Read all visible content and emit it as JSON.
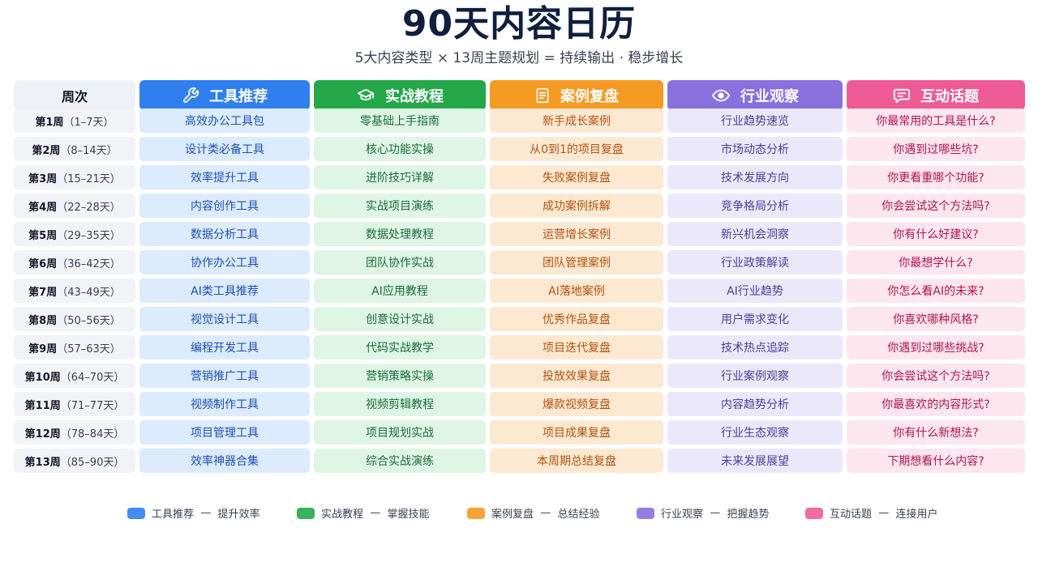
{
  "title": "90天内容日历",
  "subtitle": "5大内容类型  ×  13周主题规划  =  持续输出  ·  稳步增长",
  "headers": {
    "week": "周次",
    "categories": [
      {
        "label": "工具推荐",
        "icon": "wrench-icon",
        "color": "#2f7ff0"
      },
      {
        "label": "实战教程",
        "icon": "graduation-cap-icon",
        "color": "#24a84a"
      },
      {
        "label": "案例复盘",
        "icon": "document-icon",
        "color": "#f59a22"
      },
      {
        "label": "行业观察",
        "icon": "eye-icon",
        "color": "#8870dd"
      },
      {
        "label": "互动话题",
        "icon": "chat-bubble-icon",
        "color": "#ee5b95"
      }
    ]
  },
  "rows": [
    {
      "week": "第1周",
      "range": "（1–7天）",
      "cells": [
        "高效办公工具包",
        "零基础上手指南",
        "新手成长案例",
        "行业趋势速览",
        "你最常用的工具是什么?"
      ]
    },
    {
      "week": "第2周",
      "range": "（8–14天）",
      "cells": [
        "设计类必备工具",
        "核心功能实操",
        "从0到1的项目复盘",
        "市场动态分析",
        "你遇到过哪些坑?"
      ]
    },
    {
      "week": "第3周",
      "range": "（15–21天）",
      "cells": [
        "效率提升工具",
        "进阶技巧详解",
        "失败案例复盘",
        "技术发展方向",
        "你更看重哪个功能?"
      ]
    },
    {
      "week": "第4周",
      "range": "（22–28天）",
      "cells": [
        "内容创作工具",
        "实战项目演练",
        "成功案例拆解",
        "竞争格局分析",
        "你会尝试这个方法吗?"
      ]
    },
    {
      "week": "第5周",
      "range": "（29–35天）",
      "cells": [
        "数据分析工具",
        "数据处理教程",
        "运营增长案例",
        "新兴机会洞察",
        "你有什么好建议?"
      ]
    },
    {
      "week": "第6周",
      "range": "（36–42天）",
      "cells": [
        "协作办公工具",
        "团队协作实战",
        "团队管理案例",
        "行业政策解读",
        "你最想学什么?"
      ]
    },
    {
      "week": "第7周",
      "range": "（43–49天）",
      "cells": [
        "AI类工具推荐",
        "AI应用教程",
        "AI落地案例",
        "AI行业趋势",
        "你怎么看AI的未来?"
      ]
    },
    {
      "week": "第8周",
      "range": "（50–56天）",
      "cells": [
        "视觉设计工具",
        "创意设计实战",
        "优秀作品复盘",
        "用户需求变化",
        "你喜欢哪种风格?"
      ]
    },
    {
      "week": "第9周",
      "range": "（57–63天）",
      "cells": [
        "编程开发工具",
        "代码实战教学",
        "项目迭代复盘",
        "技术热点追踪",
        "你遇到过哪些挑战?"
      ]
    },
    {
      "week": "第10周",
      "range": "（64–70天）",
      "cells": [
        "营销推广工具",
        "营销策略实操",
        "投放效果复盘",
        "行业案例观察",
        "你会尝试这个方法吗?"
      ]
    },
    {
      "week": "第11周",
      "range": "（71–77天）",
      "cells": [
        "视频制作工具",
        "视频剪辑教程",
        "爆款视频复盘",
        "内容趋势分析",
        "你最喜欢的内容形式?"
      ]
    },
    {
      "week": "第12周",
      "range": "（78–84天）",
      "cells": [
        "项目管理工具",
        "项目规划实战",
        "项目成果复盘",
        "行业生态观察",
        "你有什么新想法?"
      ]
    },
    {
      "week": "第13周",
      "range": "（85–90天）",
      "cells": [
        "效率神器合集",
        "综合实战演练",
        "本周期总结复盘",
        "未来发展展望",
        "下期想看什么内容?"
      ]
    }
  ],
  "legend": [
    {
      "label": "工具推荐",
      "desc": "提升效率",
      "color": "#2f7ff0"
    },
    {
      "label": "实战教程",
      "desc": "掌握技能",
      "color": "#24a84a"
    },
    {
      "label": "案例复盘",
      "desc": "总结经验",
      "color": "#f59a22"
    },
    {
      "label": "行业观察",
      "desc": "把握趋势",
      "color": "#8870dd"
    },
    {
      "label": "互动话题",
      "desc": "连接用户",
      "color": "#ee5b95"
    }
  ]
}
